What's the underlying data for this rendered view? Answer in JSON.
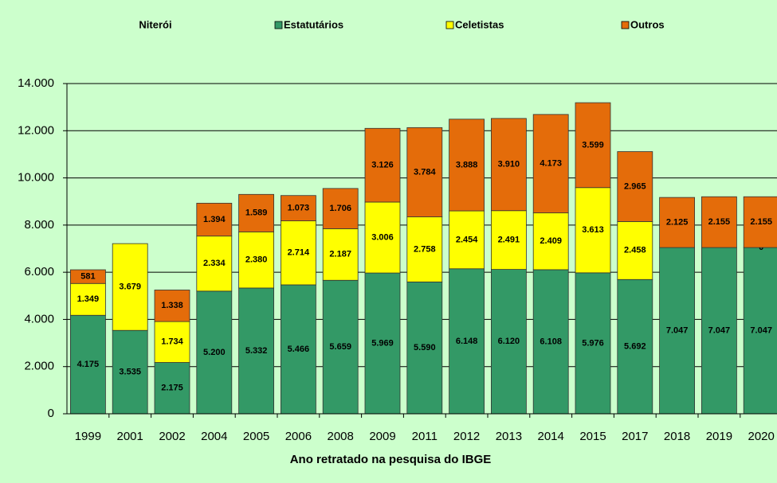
{
  "chart_data": {
    "type": "stacked_bar",
    "title": "Niterói",
    "x_label": "Ano retratado na pesquisa do IBGE",
    "categories": [
      "1999",
      "2001",
      "2002",
      "2004",
      "2005",
      "2006",
      "2008",
      "2009",
      "2011",
      "2012",
      "2013",
      "2014",
      "2015",
      "2017",
      "2018",
      "2019",
      "2020"
    ],
    "series": [
      {
        "name": "Estatutários",
        "color": "#339966",
        "values": [
          4175,
          3535,
          2175,
          5200,
          5332,
          5466,
          5659,
          5969,
          5590,
          6148,
          6120,
          6108,
          5976,
          5692,
          7047,
          7047,
          7047
        ],
        "value_labels": [
          "4.175",
          "3.535",
          "2.175",
          "5.200",
          "5.332",
          "5.466",
          "5.659",
          "5.969",
          "5.590",
          "6.148",
          "6.120",
          "6.108",
          "5.976",
          "5.692",
          "7.047",
          "7.047",
          "7.047"
        ]
      },
      {
        "name": "Celetistas",
        "color": "#ffff00",
        "values": [
          1349,
          3679,
          1734,
          2334,
          2380,
          2714,
          2187,
          3006,
          2758,
          2454,
          2491,
          2409,
          3613,
          2458,
          null,
          null,
          0
        ],
        "value_labels": [
          "1.349",
          "3.679",
          "1.734",
          "2.334",
          "2.380",
          "2.714",
          "2.187",
          "3.006",
          "2.758",
          "2.454",
          "2.491",
          "2.409",
          "3.613",
          "2.458",
          null,
          null,
          "0"
        ]
      },
      {
        "name": "Outros",
        "color": "#e46c0a",
        "values": [
          581,
          null,
          1338,
          1394,
          1589,
          1073,
          1706,
          3126,
          3784,
          3888,
          3910,
          4173,
          3599,
          2965,
          2125,
          2155,
          2155
        ],
        "value_labels": [
          "581",
          null,
          "1.338",
          "1.394",
          "1.589",
          "1.073",
          "1.706",
          "3.126",
          "3.784",
          "3.888",
          "3.910",
          "4.173",
          "3.599",
          "2.965",
          "2.125",
          "2.155",
          "2.155"
        ]
      }
    ],
    "ylim": [
      0,
      14000
    ],
    "yticks": [
      0,
      {
        "value": 2000,
        "label": "2.000"
      },
      {
        "value": 4000,
        "label": "4.000"
      },
      {
        "value": 6000,
        "label": "6.000"
      },
      {
        "value": 8000,
        "label": "8.000"
      },
      {
        "value": 10000,
        "label": "10.000"
      },
      {
        "value": 12000,
        "label": "12.000"
      },
      {
        "value": 14000,
        "label": "14.000"
      }
    ],
    "grid": true,
    "legend": "top"
  }
}
